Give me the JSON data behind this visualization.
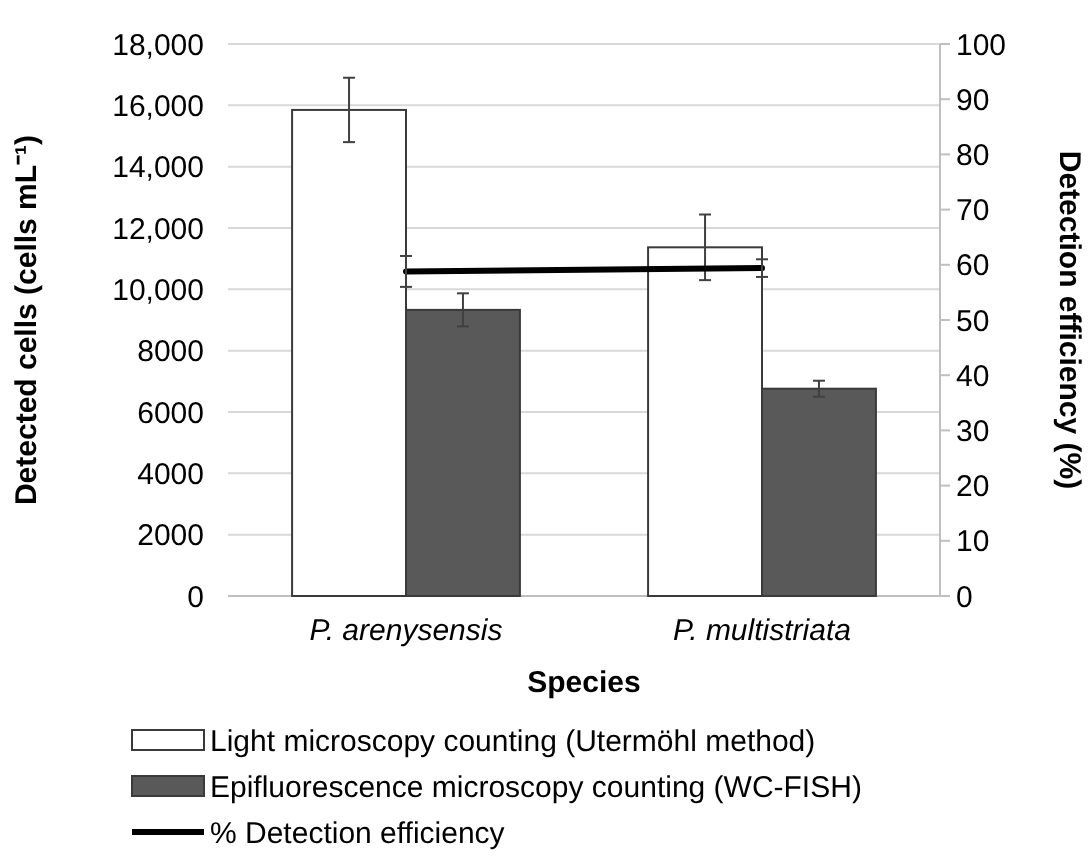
{
  "chart_data": {
    "type": "bar",
    "xlabel": "Species",
    "ylabel": "Detected cells (cells mL⁻¹)",
    "y2label": "Detection efficiency (%)",
    "categories": [
      "P. arenysensis",
      "P. multistriata"
    ],
    "series": [
      {
        "name": "Light microscopy counting (Utermöhl method)",
        "color": "#ffffff",
        "values": [
          15850,
          11370
        ],
        "errors": [
          1050,
          1070
        ]
      },
      {
        "name": "Epifluorescence microscopy counting (WC-FISH)",
        "color": "#595959",
        "values": [
          9330,
          6760
        ],
        "errors": [
          540,
          260
        ]
      },
      {
        "name": "% Detection efficiency",
        "type": "line",
        "axis": "y2",
        "color": "#000000",
        "values": [
          58.8,
          59.4
        ],
        "errors": [
          2.8,
          1.6
        ]
      }
    ],
    "ylim": [
      0,
      18000
    ],
    "yticks": [
      0,
      {
        "value": 2000,
        "label": "2000"
      },
      {
        "value": 4000,
        "label": "4000"
      },
      {
        "value": 6000,
        "label": "6000"
      },
      {
        "value": 8000,
        "label": "8000"
      },
      {
        "value": 10000,
        "label": "10,000"
      },
      {
        "value": 12000,
        "label": "12,000"
      },
      {
        "value": 14000,
        "label": "14,000"
      },
      {
        "value": 16000,
        "label": "16,000"
      },
      {
        "value": 18000,
        "label": "18,000"
      }
    ],
    "y2lim": [
      0,
      100
    ],
    "y2ticks": [
      0,
      10,
      20,
      30,
      40,
      50,
      60,
      70,
      80,
      90,
      100
    ],
    "grid": "y",
    "legend": "bottom",
    "marker": "none",
    "line_style": "solid"
  }
}
